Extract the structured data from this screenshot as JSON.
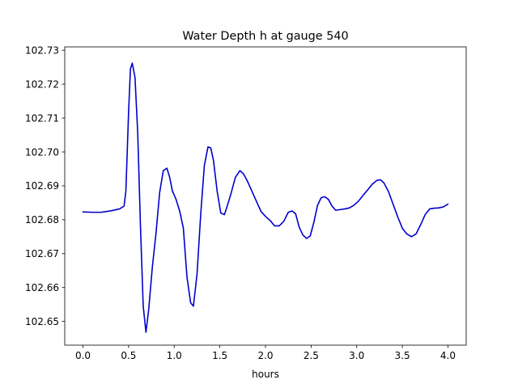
{
  "chart_data": {
    "type": "line",
    "title": "Water Depth h at gauge 540",
    "xlabel": "hours",
    "ylabel": "",
    "xlim": [
      -0.2,
      4.2
    ],
    "ylim": [
      102.643,
      102.731
    ],
    "xticks": [
      0.0,
      0.5,
      1.0,
      1.5,
      2.0,
      2.5,
      3.0,
      3.5,
      4.0
    ],
    "xtick_labels": [
      "0.0",
      "0.5",
      "1.0",
      "1.5",
      "2.0",
      "2.5",
      "3.0",
      "3.5",
      "4.0"
    ],
    "yticks": [
      102.65,
      102.66,
      102.67,
      102.68,
      102.69,
      102.7,
      102.71,
      102.72,
      102.73
    ],
    "ytick_labels": [
      "102.65",
      "102.66",
      "102.67",
      "102.68",
      "102.69",
      "102.70",
      "102.71",
      "102.72",
      "102.73"
    ],
    "grid": false,
    "line_color": "#0000cc",
    "series": [
      {
        "x": [
          0.0,
          0.1,
          0.2,
          0.3,
          0.4,
          0.45,
          0.47,
          0.5,
          0.52,
          0.54,
          0.57,
          0.6,
          0.63,
          0.66,
          0.69,
          0.72,
          0.76,
          0.8,
          0.84,
          0.88,
          0.92,
          0.95,
          0.98,
          1.02,
          1.06,
          1.1,
          1.14,
          1.18,
          1.21,
          1.25,
          1.29,
          1.33,
          1.37,
          1.4,
          1.43,
          1.47,
          1.51,
          1.55,
          1.58,
          1.62,
          1.67,
          1.72,
          1.76,
          1.8,
          1.85,
          1.9,
          1.95,
          2.0,
          2.05,
          2.1,
          2.15,
          2.2,
          2.25,
          2.29,
          2.33,
          2.37,
          2.41,
          2.45,
          2.49,
          2.53,
          2.57,
          2.61,
          2.65,
          2.69,
          2.73,
          2.77,
          2.82,
          2.87,
          2.92,
          2.97,
          3.02,
          3.07,
          3.12,
          3.17,
          3.22,
          3.26,
          3.3,
          3.35,
          3.4,
          3.45,
          3.5,
          3.55,
          3.6,
          3.65,
          3.7,
          3.75,
          3.8,
          3.85,
          3.9,
          3.95,
          4.0
        ],
        "y": [
          102.6823,
          102.6822,
          102.6822,
          102.6826,
          102.6832,
          102.684,
          102.6885,
          102.712,
          102.7245,
          102.7262,
          102.722,
          102.7055,
          102.678,
          102.6545,
          102.6468,
          102.6535,
          102.666,
          102.676,
          102.688,
          102.6945,
          102.6952,
          102.6925,
          102.6885,
          102.686,
          102.6825,
          102.6775,
          102.663,
          102.6555,
          102.6545,
          102.664,
          102.6815,
          102.696,
          102.7015,
          102.7012,
          102.6975,
          102.6885,
          102.682,
          102.6815,
          102.684,
          102.6875,
          102.6925,
          102.6945,
          102.6935,
          102.6915,
          102.6885,
          102.6855,
          102.6825,
          102.681,
          102.6798,
          102.6782,
          102.6782,
          102.6795,
          102.6822,
          102.6826,
          102.6818,
          102.6778,
          102.6755,
          102.6745,
          102.6752,
          102.6792,
          102.6842,
          102.6865,
          102.6868,
          102.686,
          102.684,
          102.6828,
          102.683,
          102.6832,
          102.6835,
          102.6843,
          102.6855,
          102.6872,
          102.6888,
          102.6905,
          102.6916,
          102.6918,
          102.6908,
          102.6882,
          102.6845,
          102.6808,
          102.6775,
          102.6758,
          102.675,
          102.6758,
          102.6785,
          102.6815,
          102.6832,
          102.6834,
          102.6835,
          102.6838,
          102.6846
        ]
      }
    ]
  }
}
